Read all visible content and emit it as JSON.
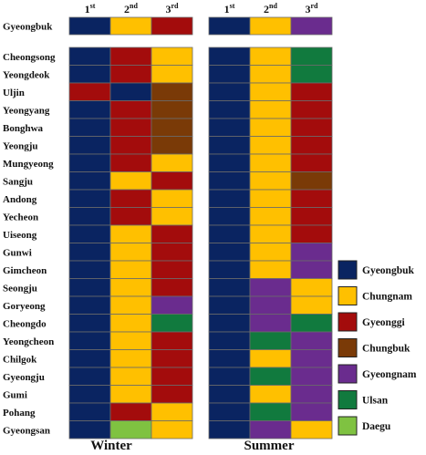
{
  "chart_data": {
    "type": "heatmap",
    "colors": {
      "Gyeongbuk": "#0a2461",
      "Chungnam": "#ffc000",
      "Gyeonggi": "#a30c0c",
      "Chungbuk": "#7a3a07",
      "Gyeongnam": "#6a2c8e",
      "Ulsan": "#117a3e",
      "Daegu": "#7fc241"
    },
    "rank_labels": [
      {
        "base": "1",
        "sup": "st"
      },
      {
        "base": "2",
        "sup": "nd"
      },
      {
        "base": "3",
        "sup": "rd"
      }
    ],
    "top_row": {
      "label": "Gyeongbuk",
      "winter": [
        "Gyeongbuk",
        "Chungnam",
        "Gyeonggi"
      ],
      "summer": [
        "Gyeongbuk",
        "Chungnam",
        "Gyeongnam"
      ]
    },
    "rows": [
      {
        "label": "Cheongsong",
        "winter": [
          "Gyeongbuk",
          "Gyeonggi",
          "Chungnam"
        ],
        "summer": [
          "Gyeongbuk",
          "Chungnam",
          "Ulsan"
        ]
      },
      {
        "label": "Yeongdeok",
        "winter": [
          "Gyeongbuk",
          "Gyeonggi",
          "Chungnam"
        ],
        "summer": [
          "Gyeongbuk",
          "Chungnam",
          "Ulsan"
        ]
      },
      {
        "label": "Uljin",
        "winter": [
          "Gyeonggi",
          "Gyeongbuk",
          "Chungbuk"
        ],
        "summer": [
          "Gyeongbuk",
          "Chungnam",
          "Gyeonggi"
        ]
      },
      {
        "label": "Yeongyang",
        "winter": [
          "Gyeongbuk",
          "Gyeonggi",
          "Chungbuk"
        ],
        "summer": [
          "Gyeongbuk",
          "Chungnam",
          "Gyeonggi"
        ]
      },
      {
        "label": "Bonghwa",
        "winter": [
          "Gyeongbuk",
          "Gyeonggi",
          "Chungbuk"
        ],
        "summer": [
          "Gyeongbuk",
          "Chungnam",
          "Gyeonggi"
        ]
      },
      {
        "label": "Yeongju",
        "winter": [
          "Gyeongbuk",
          "Gyeonggi",
          "Chungbuk"
        ],
        "summer": [
          "Gyeongbuk",
          "Chungnam",
          "Gyeonggi"
        ]
      },
      {
        "label": "Mungyeong",
        "winter": [
          "Gyeongbuk",
          "Gyeonggi",
          "Chungnam"
        ],
        "summer": [
          "Gyeongbuk",
          "Chungnam",
          "Gyeonggi"
        ]
      },
      {
        "label": "Sangju",
        "winter": [
          "Gyeongbuk",
          "Chungnam",
          "Gyeonggi"
        ],
        "summer": [
          "Gyeongbuk",
          "Chungnam",
          "Chungbuk"
        ]
      },
      {
        "label": "Andong",
        "winter": [
          "Gyeongbuk",
          "Gyeonggi",
          "Chungnam"
        ],
        "summer": [
          "Gyeongbuk",
          "Chungnam",
          "Gyeonggi"
        ]
      },
      {
        "label": "Yecheon",
        "winter": [
          "Gyeongbuk",
          "Gyeonggi",
          "Chungnam"
        ],
        "summer": [
          "Gyeongbuk",
          "Chungnam",
          "Gyeonggi"
        ]
      },
      {
        "label": "Uiseong",
        "winter": [
          "Gyeongbuk",
          "Chungnam",
          "Gyeonggi"
        ],
        "summer": [
          "Gyeongbuk",
          "Chungnam",
          "Gyeonggi"
        ]
      },
      {
        "label": "Gunwi",
        "winter": [
          "Gyeongbuk",
          "Chungnam",
          "Gyeonggi"
        ],
        "summer": [
          "Gyeongbuk",
          "Chungnam",
          "Gyeongnam"
        ]
      },
      {
        "label": "Gimcheon",
        "winter": [
          "Gyeongbuk",
          "Chungnam",
          "Gyeonggi"
        ],
        "summer": [
          "Gyeongbuk",
          "Chungnam",
          "Gyeongnam"
        ]
      },
      {
        "label": "Seongju",
        "winter": [
          "Gyeongbuk",
          "Chungnam",
          "Gyeonggi"
        ],
        "summer": [
          "Gyeongbuk",
          "Gyeongnam",
          "Chungnam"
        ]
      },
      {
        "label": "Goryeong",
        "winter": [
          "Gyeongbuk",
          "Chungnam",
          "Gyeongnam"
        ],
        "summer": [
          "Gyeongbuk",
          "Gyeongnam",
          "Chungnam"
        ]
      },
      {
        "label": "Cheongdo",
        "winter": [
          "Gyeongbuk",
          "Chungnam",
          "Ulsan"
        ],
        "summer": [
          "Gyeongbuk",
          "Gyeongnam",
          "Ulsan"
        ]
      },
      {
        "label": "Yeongcheon",
        "winter": [
          "Gyeongbuk",
          "Chungnam",
          "Gyeonggi"
        ],
        "summer": [
          "Gyeongbuk",
          "Ulsan",
          "Gyeongnam"
        ]
      },
      {
        "label": "Chilgok",
        "winter": [
          "Gyeongbuk",
          "Chungnam",
          "Gyeonggi"
        ],
        "summer": [
          "Gyeongbuk",
          "Chungnam",
          "Gyeongnam"
        ]
      },
      {
        "label": "Gyeongju",
        "winter": [
          "Gyeongbuk",
          "Chungnam",
          "Gyeonggi"
        ],
        "summer": [
          "Gyeongbuk",
          "Ulsan",
          "Gyeongnam"
        ]
      },
      {
        "label": "Gumi",
        "winter": [
          "Gyeongbuk",
          "Chungnam",
          "Gyeonggi"
        ],
        "summer": [
          "Gyeongbuk",
          "Chungnam",
          "Gyeongnam"
        ]
      },
      {
        "label": "Pohang",
        "winter": [
          "Gyeongbuk",
          "Gyeonggi",
          "Chungnam"
        ],
        "summer": [
          "Gyeongbuk",
          "Ulsan",
          "Gyeongnam"
        ]
      },
      {
        "label": "Gyeongsan",
        "winter": [
          "Gyeongbuk",
          "Daegu",
          "Chungnam"
        ],
        "summer": [
          "Gyeongbuk",
          "Gyeongnam",
          "Chungnam"
        ]
      }
    ],
    "panels": [
      "Winter",
      "Summer"
    ],
    "legend": [
      "Gyeongbuk",
      "Chungnam",
      "Gyeonggi",
      "Chungbuk",
      "Gyeongnam",
      "Ulsan",
      "Daegu"
    ]
  }
}
